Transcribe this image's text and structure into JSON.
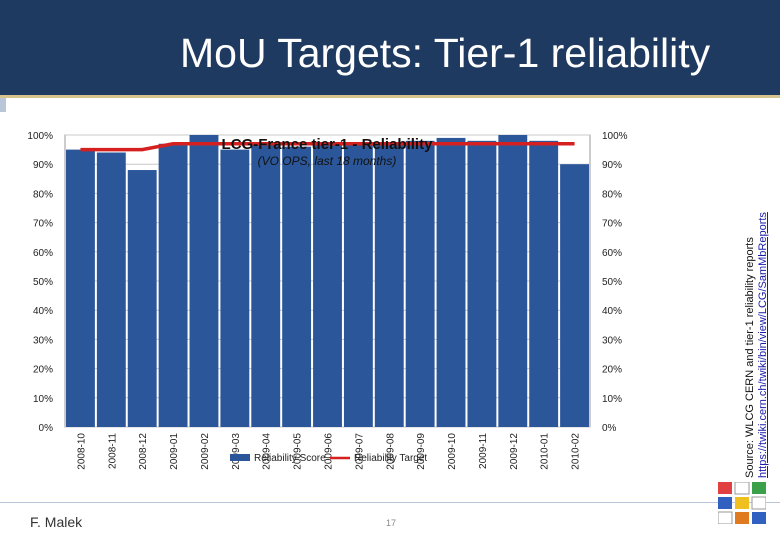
{
  "slide": {
    "title": "MoU Targets: Tier-1 reliability",
    "author": "F. Malek",
    "page_number": "17",
    "source_line1": "Source: WLCG CERN and tier-1 reliability reports",
    "source_line2": "https://twiki.cern.ch/twiki/bin/view/LCG/SamMbReports"
  },
  "colors": {
    "header": "#1f3a60",
    "bar": "#2b579a",
    "target": "#d62020",
    "plot_bg": "#ffffff"
  },
  "chart_data": {
    "type": "bar",
    "title": "LCG-France tier-1 - Reliability",
    "subtitle": "(VO OPS, last 18 months)",
    "categories": [
      "2008-10",
      "2008-11",
      "2008-12",
      "2009-01",
      "2009-02",
      "2009-03",
      "2009-04",
      "2009-05",
      "2009-06",
      "2009-07",
      "2009-08",
      "2009-09",
      "2009-10",
      "2009-11",
      "2009-12",
      "2010-01",
      "2010-02"
    ],
    "series": [
      {
        "name": "Reliability Score",
        "type": "bar",
        "values": [
          95,
          94,
          88,
          97,
          100,
          95,
          97,
          96,
          97,
          97,
          97,
          98,
          99,
          98,
          100,
          98,
          90
        ]
      },
      {
        "name": "Reliability Target",
        "type": "line",
        "values": [
          95,
          95,
          95,
          97,
          97,
          97,
          97,
          97,
          97,
          97,
          97,
          97,
          97,
          97,
          97,
          97,
          97
        ]
      }
    ],
    "y_ticks": [
      "0%",
      "10%",
      "20%",
      "30%",
      "40%",
      "50%",
      "60%",
      "70%",
      "80%",
      "90%",
      "100%"
    ],
    "ylim": [
      0,
      100
    ],
    "grid": true,
    "legend_position": "bottom"
  }
}
